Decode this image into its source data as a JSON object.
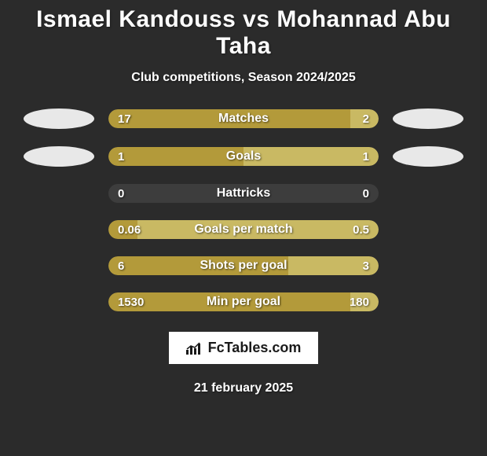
{
  "colors": {
    "background": "#2b2b2b",
    "title_color": "#ffffff",
    "subtitle_color": "#ffffff",
    "bar_track": "#3d3d3d",
    "left_color": "#b39a3a",
    "right_color": "#c9b963",
    "text_on_bar": "#ffffff",
    "logo_left": "#e8e8e8",
    "logo_right": "#e8e8e8",
    "badge_bg": "#ffffff",
    "badge_text": "#1a1a1a",
    "date_color": "#ffffff"
  },
  "typography": {
    "title_fontsize": 30,
    "subtitle_fontsize": 16,
    "bar_label_fontsize": 16,
    "bar_value_fontsize": 15,
    "badge_fontsize": 18,
    "date_fontsize": 16
  },
  "title": {
    "player_left": "Ismael Kandouss",
    "vs": "vs",
    "player_right": "Mohannad Abu Taha"
  },
  "subtitle": "Club competitions, Season 2024/2025",
  "bar_style": {
    "height": 24,
    "radius": 12,
    "row_gap": 22
  },
  "stats": [
    {
      "label": "Matches",
      "left_value": "17",
      "right_value": "2",
      "left_num": 17,
      "right_num": 2,
      "show_logos": true
    },
    {
      "label": "Goals",
      "left_value": "1",
      "right_value": "1",
      "left_num": 1,
      "right_num": 1,
      "show_logos": true
    },
    {
      "label": "Hattricks",
      "left_value": "0",
      "right_value": "0",
      "left_num": 0,
      "right_num": 0,
      "show_logos": false
    },
    {
      "label": "Goals per match",
      "left_value": "0.06",
      "right_value": "0.5",
      "left_num": 0.06,
      "right_num": 0.5,
      "show_logos": false
    },
    {
      "label": "Shots per goal",
      "left_value": "6",
      "right_value": "3",
      "left_num": 6,
      "right_num": 3,
      "show_logos": false
    },
    {
      "label": "Min per goal",
      "left_value": "1530",
      "right_value": "180",
      "left_num": 1530,
      "right_num": 180,
      "show_logos": false
    }
  ],
  "brand": "FcTables.com",
  "date": "21 february 2025"
}
